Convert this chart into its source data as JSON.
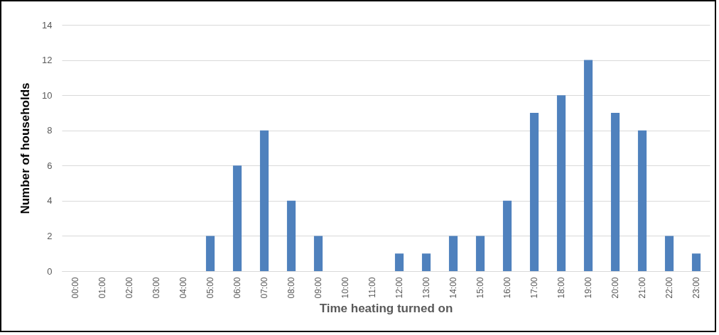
{
  "chart_data": {
    "type": "bar",
    "xlabel": "Time heating turned on",
    "ylabel": "Number of households",
    "categories": [
      "00:00",
      "01:00",
      "02:00",
      "03:00",
      "04:00",
      "05:00",
      "06:00",
      "07:00",
      "08:00",
      "09:00",
      "10:00",
      "11:00",
      "12:00",
      "13:00",
      "14:00",
      "15:00",
      "16:00",
      "17:00",
      "18:00",
      "19:00",
      "20:00",
      "21:00",
      "22:00",
      "23:00"
    ],
    "values": [
      0,
      0,
      0,
      0,
      0,
      2,
      6,
      8,
      4,
      2,
      0,
      0,
      1,
      1,
      2,
      2,
      4,
      9,
      10,
      12,
      9,
      8,
      2,
      1
    ],
    "color": "#4f81bd",
    "ylim": [
      0,
      14
    ],
    "yticks": [
      0,
      2,
      4,
      6,
      8,
      10,
      12,
      14
    ],
    "grid": "y"
  }
}
